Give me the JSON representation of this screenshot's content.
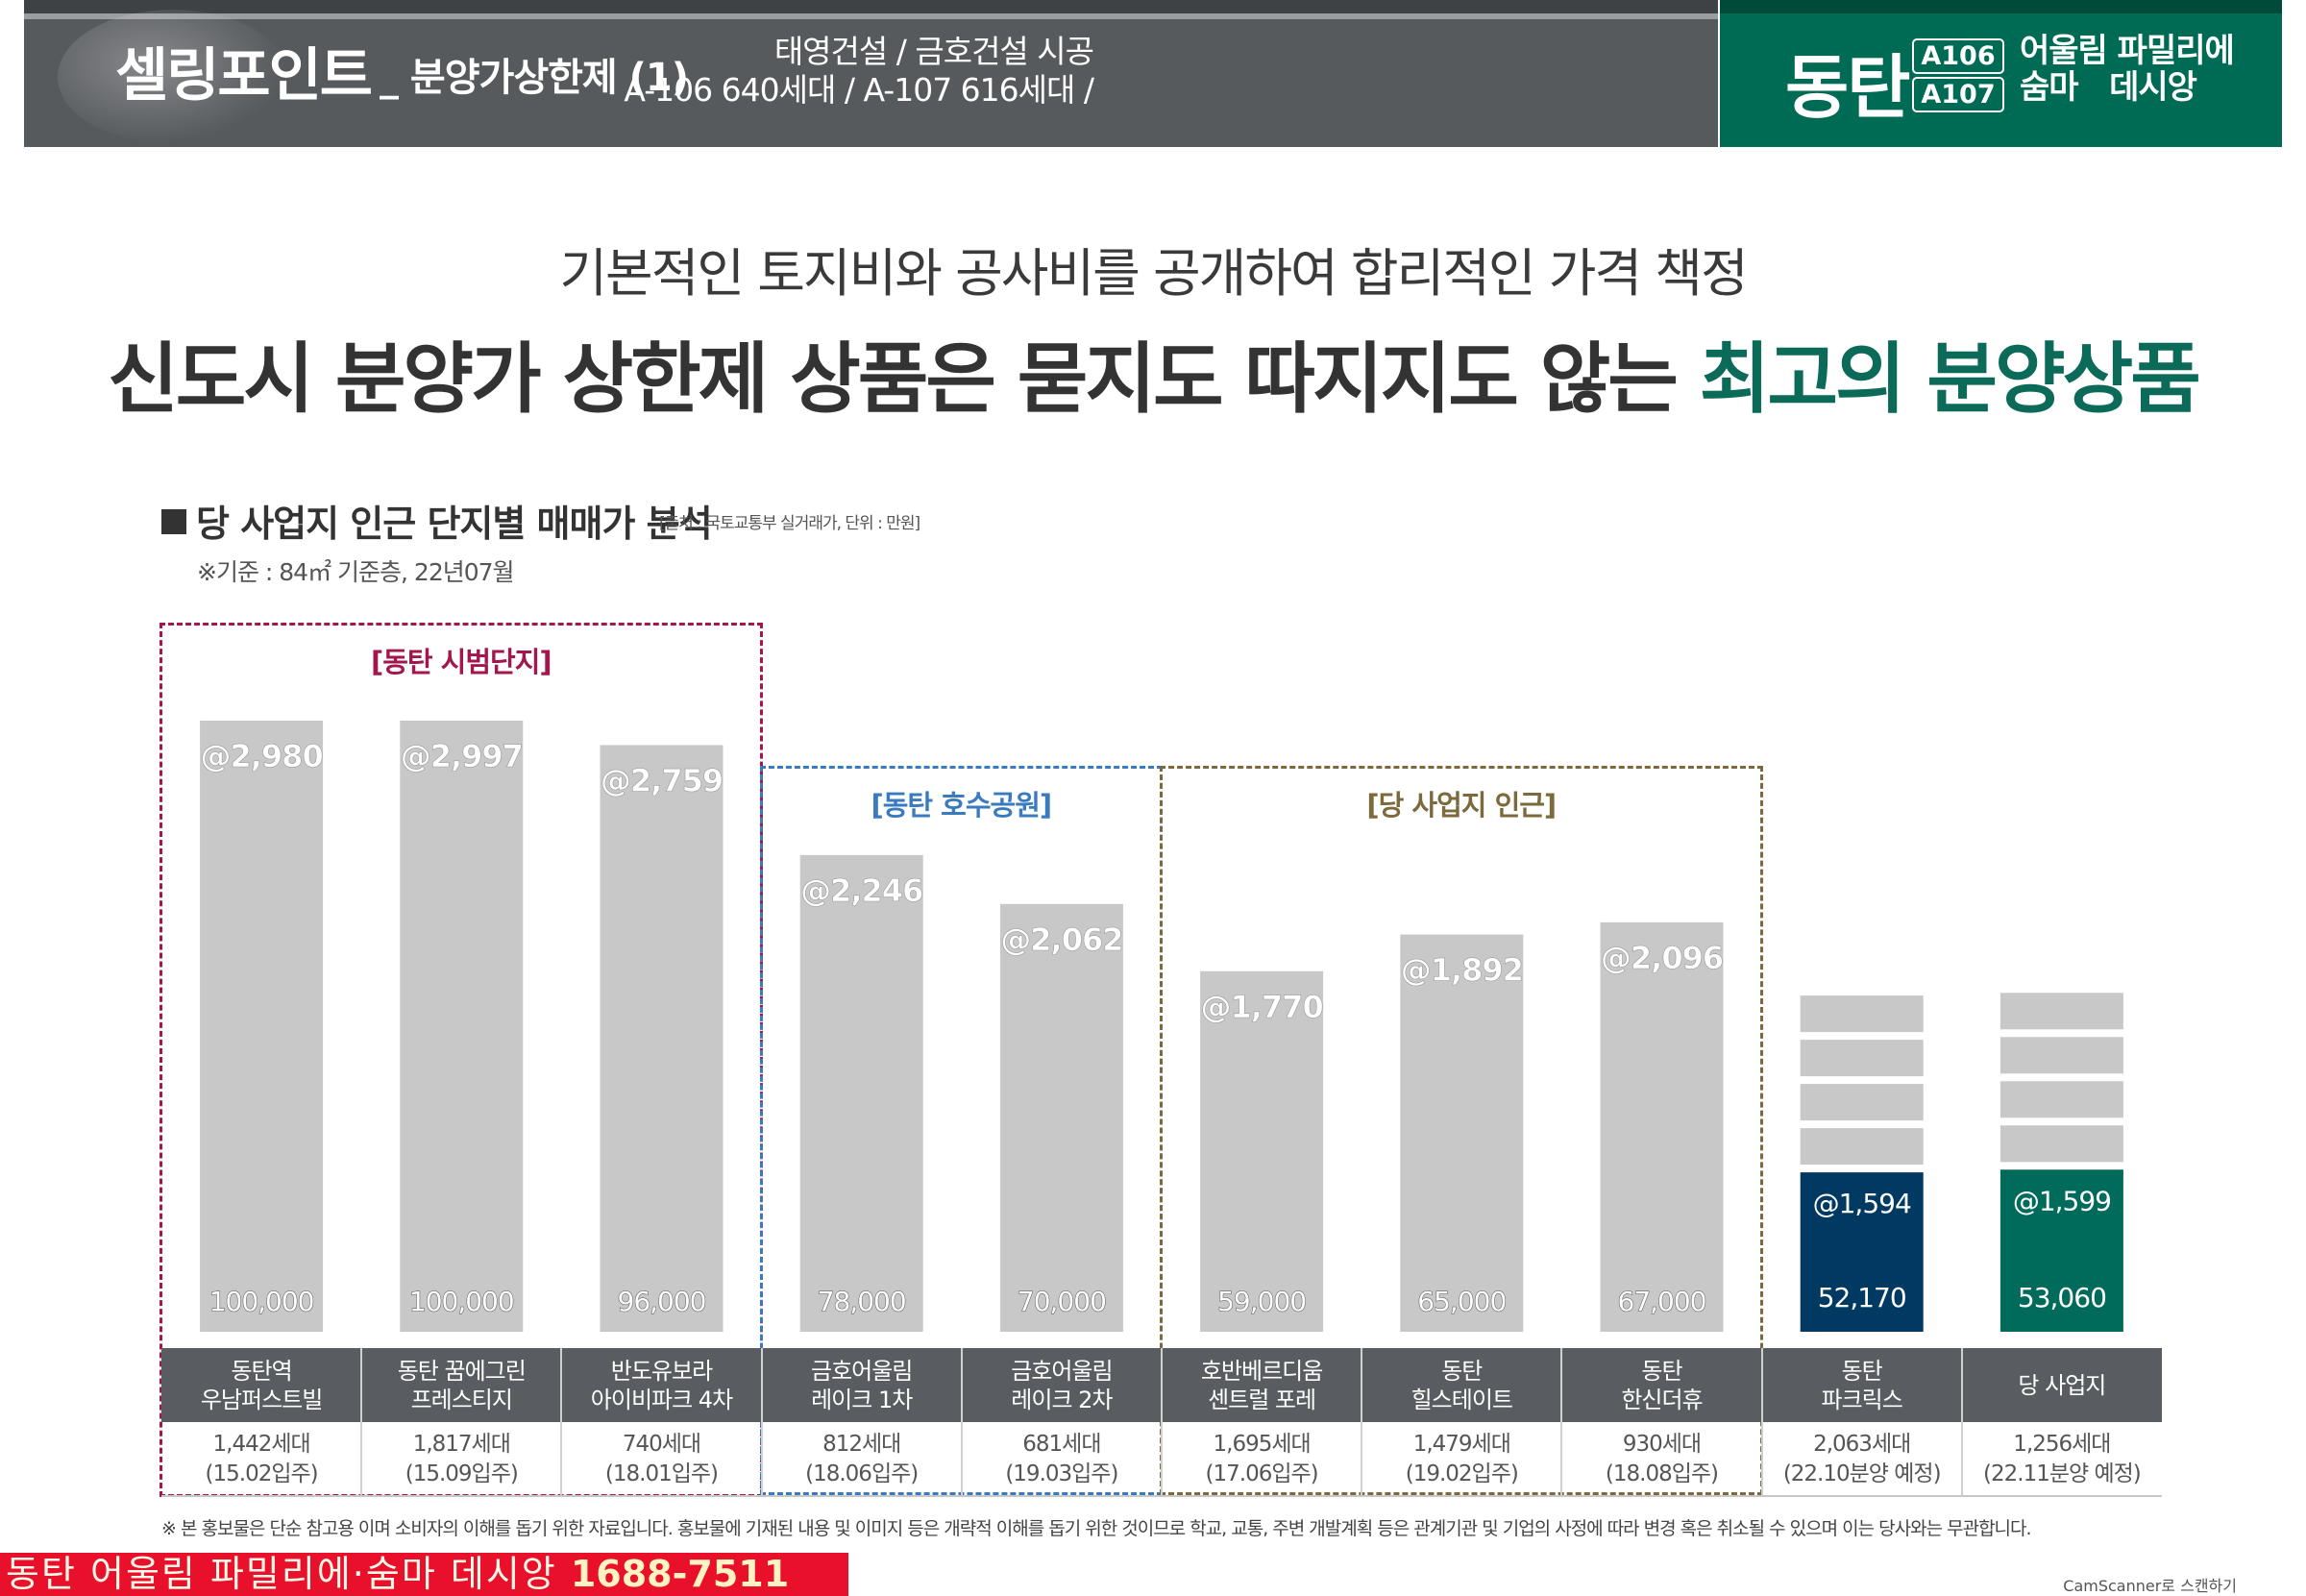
{
  "header": {
    "title": "셀링포인트",
    "subtitle": "_ 분양가상한제 (1)",
    "builder_line1": "태영건설 / 금호건설 시공",
    "builder_line2": "A-106 640세대 / A-107 616세대 /",
    "brand_dongtan": "동탄",
    "brand_codes": [
      "A106",
      "A107"
    ],
    "brand_name_line1": "어울림 파밀리에",
    "brand_name_line2": "숨마   데시앙",
    "colors": {
      "dark": "#575a5d",
      "green": "#006b54"
    }
  },
  "headline": {
    "line1": "기본적인 토지비와 공사비를 공개하여 합리적인 가격 책정",
    "line2_prefix": "신도시 분양가 상한제 상품은 묻지도 따지지도 않는",
    "line2_highlight": "최고의 분양상품"
  },
  "section": {
    "heading": "당 사업지 인근 단지별 매매가 분석",
    "source": "[출처 : 국토교통부 실거래가, 단위 : 만원]",
    "basis": "※기준 : 84㎡ 기준층, 22년07월"
  },
  "groups": [
    {
      "label": "[동탄 시범단지]",
      "color": "#a3174f",
      "span": [
        0,
        2
      ]
    },
    {
      "label": "[동탄 호수공원]",
      "color": "#3a7bbf",
      "span": [
        3,
        4
      ]
    },
    {
      "label": "[당 사업지 인근]",
      "color": "#7d6a3c",
      "span": [
        5,
        7
      ]
    }
  ],
  "chart_data": {
    "type": "bar",
    "categories": [
      "동탄역 우남퍼스트빌",
      "동탄 꿈에그린 프레스티지",
      "반도유보라 아이비파크 4차",
      "금호어울림 레이크 1차",
      "금호어울림 레이크 2차",
      "호반베르디움 센트럴 포레",
      "동탄 힐스테이트",
      "동탄 한신더휴",
      "동탄 파크릭스",
      "당 사업지"
    ],
    "series": [
      {
        "values": [
          100000,
          100000,
          96000,
          78000,
          70000,
          59000,
          65000,
          67000,
          52170,
          53060
        ]
      }
    ],
    "unit_price_labels": [
      "@2,980",
      "@2,997",
      "@2,759",
      "@2,246",
      "@2,062",
      "@1,770",
      "@1,892",
      "@2,096",
      "@1,594",
      "@1,599"
    ],
    "value_labels": [
      "100,000",
      "100,000",
      "96,000",
      "78,000",
      "70,000",
      "59,000",
      "65,000",
      "67,000",
      "52,170",
      "53,060"
    ],
    "bar_colors": [
      "#c8c8c8",
      "#c8c8c8",
      "#c8c8c8",
      "#c8c8c8",
      "#c8c8c8",
      "#c8c8c8",
      "#c8c8c8",
      "#c8c8c8",
      "#003a63",
      "#006b5a"
    ],
    "stacked_bar_indices": [
      8,
      9
    ],
    "stacked_segment_color": "#c8c8c8",
    "ylim": [
      0,
      100000
    ],
    "grid": false,
    "legend": "none"
  },
  "table": {
    "headers": [
      "동탄역\n우남퍼스트빌",
      "동탄 꿈에그린\n프레스티지",
      "반도유보라\n아이비파크 4차",
      "금호어울림\n레이크 1차",
      "금호어울림\n레이크 2차",
      "호반베르디움\n센트럴 포레",
      "동탄\n힐스테이트",
      "동탄\n한신더휴",
      "동탄\n파크릭스",
      "당 사업지"
    ],
    "subs": [
      "1,442세대\n(15.02입주)",
      "1,817세대\n(15.09입주)",
      "740세대\n(18.01입주)",
      "812세대\n(18.06입주)",
      "681세대\n(19.03입주)",
      "1,695세대\n(17.06입주)",
      "1,479세대\n(19.02입주)",
      "930세대\n(18.08입주)",
      "2,063세대\n(22.10분양 예정)",
      "1,256세대\n(22.11분양 예정)"
    ]
  },
  "footnote": "※ 본 홍보물은 단순 참고용 이며 소비자의 이해를 돕기 위한 자료입니다. 홍보물에 기재된 내용 및 이미지 등은 개략적 이해를 돕기 위한 것이므로 학교, 교통, 주변 개발계획 등은 관계기관 및 기업의 사정에 따라 변경 혹은 취소될 수 있으며 이는 당사와는 무관합니다.",
  "banner": {
    "text": "동탄 어울림 파밀리에·숨마 데시앙 ",
    "phone": "1688-7511"
  },
  "scanner_text": "CamScanner로 스캔하기"
}
